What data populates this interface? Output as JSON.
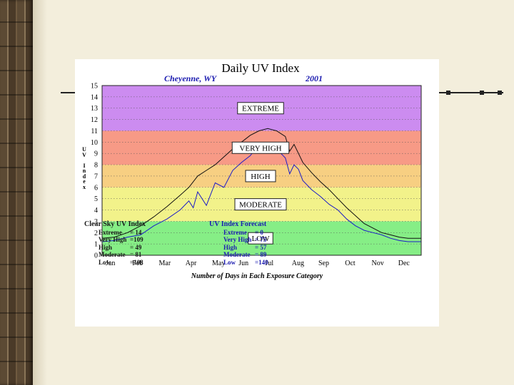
{
  "chart_data": {
    "type": "line",
    "title": "Daily UV Index",
    "subtitle_location": "Cheyenne, WY",
    "subtitle_year": "2001",
    "ylabel": "UV Index",
    "xlabel": "",
    "ylim": [
      0,
      15
    ],
    "yticks": [
      "0",
      "1",
      "2",
      "3",
      "4",
      "5",
      "6",
      "7",
      "8",
      "9",
      "10",
      "11",
      "12",
      "13",
      "14",
      "15"
    ],
    "xticks": [
      "Jan",
      "Feb",
      "Mar",
      "Apr",
      "May",
      "Jun",
      "Jul",
      "Aug",
      "Sep",
      "Oct",
      "Nov",
      "Dec"
    ],
    "bands": [
      {
        "label": "LOW",
        "from": 0,
        "to": 3,
        "color": "#86ee86"
      },
      {
        "label": "MODERATE",
        "from": 3,
        "to": 6,
        "color": "#f2f28a"
      },
      {
        "label": "HIGH",
        "from": 6,
        "to": 8,
        "color": "#f7cf82"
      },
      {
        "label": "VERY HIGH",
        "from": 8,
        "to": 11,
        "color": "#f79a86"
      },
      {
        "label": "EXTREME",
        "from": 11,
        "to": 15,
        "color": "#cc8cf0"
      }
    ],
    "series": [
      {
        "name": "Clear Sky UV Index",
        "color": "#111111",
        "x": [
          1,
          15,
          30,
          45,
          60,
          75,
          90,
          100,
          105,
          110,
          120,
          130,
          140,
          150,
          160,
          170,
          180,
          190,
          200,
          210,
          215,
          220,
          225,
          230,
          240,
          250,
          260,
          270,
          280,
          290,
          300,
          310,
          320,
          330,
          340,
          350,
          365
        ],
        "y": [
          1.5,
          1.6,
          2.0,
          2.6,
          3.4,
          4.3,
          5.3,
          6.0,
          6.5,
          7.0,
          7.5,
          8.0,
          8.7,
          9.4,
          10.0,
          10.6,
          11.0,
          11.2,
          11.0,
          10.5,
          9.2,
          9.8,
          9.0,
          8.2,
          7.3,
          6.5,
          5.8,
          5.0,
          4.2,
          3.5,
          2.8,
          2.4,
          2.0,
          1.8,
          1.6,
          1.5,
          1.5
        ]
      },
      {
        "name": "UV Index Forecast",
        "color": "#1c1cc8",
        "x": [
          1,
          15,
          30,
          45,
          60,
          75,
          90,
          100,
          105,
          110,
          120,
          130,
          140,
          150,
          160,
          170,
          180,
          190,
          200,
          210,
          215,
          220,
          225,
          230,
          240,
          250,
          260,
          270,
          280,
          290,
          300,
          310,
          320,
          330,
          340,
          350,
          365
        ],
        "y": [
          1.2,
          1.3,
          1.6,
          1.8,
          2.6,
          3.2,
          4.0,
          4.8,
          4.2,
          5.6,
          4.4,
          6.4,
          6.0,
          7.5,
          8.2,
          8.8,
          9.8,
          9.6,
          9.4,
          8.6,
          7.2,
          8.0,
          7.6,
          6.6,
          5.8,
          5.2,
          4.5,
          4.0,
          3.2,
          2.6,
          2.2,
          2.0,
          1.8,
          1.5,
          1.3,
          1.2,
          1.2
        ]
      }
    ],
    "bottom_title": "Number of Days in Each Exposure Category"
  },
  "stats": {
    "clear": {
      "header": "Clear Sky UV Index",
      "rows": [
        {
          "label": "Extreme",
          "value": "=  14"
        },
        {
          "label": "Very High",
          "value": "=109"
        },
        {
          "label": "High",
          "value": "=  49"
        },
        {
          "label": "Moderate",
          "value": "=  81"
        },
        {
          "label": "Low",
          "value": "=108"
        }
      ]
    },
    "forecast": {
      "header": "UV Index Forecast",
      "rows": [
        {
          "label": "Extreme",
          "value": "=    0"
        },
        {
          "label": "Very High",
          "value": "=  75"
        },
        {
          "label": "High",
          "value": "=  57"
        },
        {
          "label": "Moderate",
          "value": "=  89"
        },
        {
          "label": "Low",
          "value": "=140"
        }
      ]
    }
  }
}
